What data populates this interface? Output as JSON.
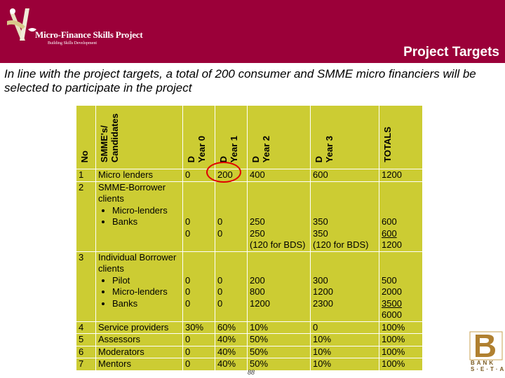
{
  "header": {
    "logo_title": "Micro-Finance Skills Project",
    "logo_subtitle": "Building Skills Development",
    "title": "Project Targets",
    "bg_color": "#9b0039"
  },
  "intro": "In line with the project targets, a total of 200 consumer and SMME micro financiers will be selected to participate in the project",
  "table": {
    "bg_color": "#cccc33",
    "headers": [
      "No",
      "SMME's/\nCandidates",
      "D\nYear 0",
      "D\nYear 1",
      "D\nYear 2",
      "D\nYear 3",
      "TOTALS"
    ],
    "rows": [
      {
        "no": "1",
        "candidate": "Micro lenders",
        "y0": "0",
        "y1": "200",
        "y2": "400",
        "y3": "600",
        "total": "1200"
      },
      {
        "no": "2",
        "candidate": "SMME-Borrower clients",
        "items": [
          "Micro-lenders",
          "Banks"
        ],
        "y0": [
          "0",
          "0"
        ],
        "y1": [
          "0",
          "0"
        ],
        "y2": [
          "250",
          "250",
          "(120 for BDS)"
        ],
        "y3": [
          "350",
          "350",
          "(120 for BDS)"
        ],
        "total": [
          "600",
          "600",
          "1200"
        ]
      },
      {
        "no": "3",
        "candidate": "Individual Borrower clients",
        "items": [
          "Pilot",
          "Micro-lenders",
          "Banks"
        ],
        "y0": [
          "0",
          "0",
          "0"
        ],
        "y1": [
          "0",
          "0",
          "0"
        ],
        "y2": [
          "200",
          "800",
          "1200"
        ],
        "y3": [
          "300",
          "1200",
          "2300"
        ],
        "total": [
          "500",
          "2000",
          "3500",
          "6000"
        ]
      },
      {
        "no": "4",
        "candidate": "Service providers",
        "y0": "30%",
        "y1": "60%",
        "y2": "10%",
        "y3": "0",
        "total": "100%"
      },
      {
        "no": "5",
        "candidate": "Assessors",
        "y0": "0",
        "y1": "40%",
        "y2": "50%",
        "y3": "10%",
        "total": "100%"
      },
      {
        "no": "6",
        "candidate": "Moderators",
        "y0": "0",
        "y1": "40%",
        "y2": "50%",
        "y3": "10%",
        "total": "100%"
      },
      {
        "no": "7",
        "candidate": "Mentors",
        "y0": "0",
        "y1": "40%",
        "y2": "50%",
        "y3": "10%",
        "total": "100%"
      }
    ]
  },
  "page_number": "88",
  "bank_logo_text": [
    "BANK",
    "S·E·T·A"
  ]
}
